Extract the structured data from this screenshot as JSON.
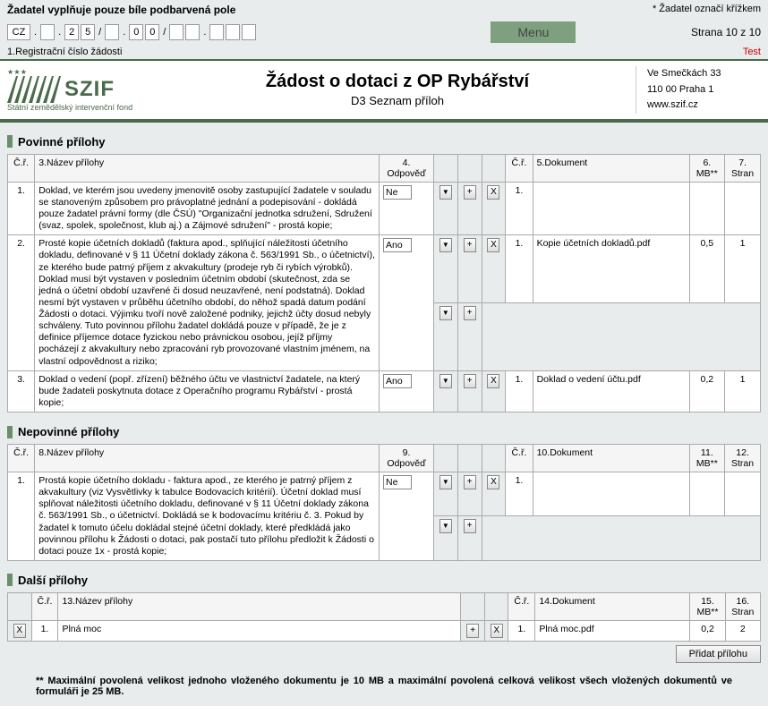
{
  "header": {
    "fill_note": "Žadatel vyplňuje pouze bíle podbarvená pole",
    "mark_note": "* Žadatel označí křížkem",
    "reg_prefix": "CZ",
    "reg_parts": [
      ".",
      "",
      ".",
      "2",
      "5",
      "/",
      "",
      ".",
      "0",
      "0",
      "/",
      "",
      "",
      ".",
      "",
      "",
      ""
    ],
    "menu": "Menu",
    "page_info": "Strana 10 z 10",
    "test": "Test",
    "reg_label": "1.Registrační číslo žádosti"
  },
  "banner": {
    "logo_text": "SZIF",
    "logo_sub": "Státní zemědělský intervenční fond",
    "title": "Žádost o dotaci z OP Rybářství",
    "subtitle": "D3 Seznam příloh",
    "addr1": "Ve Smečkách 33",
    "addr2": "110 00 Praha 1",
    "addr3": "www.szif.cz"
  },
  "sections": {
    "povinne": "Povinné přílohy",
    "nepovinne": "Nepovinné přílohy",
    "dalsi": "Další přílohy"
  },
  "hdr": {
    "cr": "Č.ř.",
    "nazev3": "3.Název přílohy",
    "odp4": "4. Odpověď",
    "dok5": "5.Dokument",
    "mb6": "6. MB**",
    "stran7": "7. Stran",
    "nazev8": "8.Název přílohy",
    "odp9": "9. Odpověď",
    "dok10": "10.Dokument",
    "mb11": "11. MB**",
    "stran12": "12. Stran",
    "nazev13": "13.Název přílohy",
    "dok14": "14.Dokument",
    "mb15": "15. MB**",
    "stran16": "16. Stran"
  },
  "povinne_rows": [
    {
      "n": "1.",
      "desc": "Doklad, ve kterém jsou uvedeny jmenovitě osoby zastupující žadatele v souladu se stanoveným způsobem pro právoplatné jednání a podepisování - dokládá pouze žadatel právní formy (dle ČSÚ) \"Organizační jednotka sdružení, Sdružení (svaz, spolek, společnost, klub aj.) a Zájmové sdružení\" - prostá kopie;",
      "odp": "Ne",
      "doc_n": "1.",
      "doc": "",
      "mb": "",
      "stran": ""
    },
    {
      "n": "2.",
      "desc": "Prosté kopie účetních dokladů (faktura apod., splňující náležitosti účetního dokladu, definované v § 11 Účetní doklady zákona č. 563/1991 Sb., o účetnictví), ze kterého bude patrný příjem z akvakultury (prodeje ryb či rybích výrobků). Doklad musí být vystaven v posledním účetním období (skutečnost, zda se jedná o účetní období uzavřené či dosud neuzavřené, není podstatná). Doklad nesmí být vystaven v průběhu účetního období, do něhož spadá datum podání Žádosti o dotaci. Výjimku tvoří nově založené podniky, jejichž účty dosud nebyly schváleny. Tuto povinnou přílohu žadatel dokládá pouze v případě, že je z definice příjemce dotace fyzickou nebo právnickou osobou, jejíž příjmy pocházejí z akvakultury nebo zpracování ryb provozované vlastním jménem, na vlastní odpovědnost a riziko;",
      "odp": "Ano",
      "doc_n": "1.",
      "doc": "Kopie účetních dokladů.pdf",
      "mb": "0,5",
      "stran": "1"
    },
    {
      "n": "3.",
      "desc": "Doklad o vedení (popř. zřízení) běžného účtu ve vlastnictví žadatele, na který bude žadateli poskytnuta dotace z Operačního programu Rybářství - prostá kopie;",
      "odp": "Ano",
      "doc_n": "1.",
      "doc": "Doklad o vedení účtu.pdf",
      "mb": "0,2",
      "stran": "1"
    }
  ],
  "nepovinne_rows": [
    {
      "n": "1.",
      "desc": "Prostá kopie účetního dokladu - faktura apod., ze kterého je patrný příjem z akvakultury (viz Vysvětlivky k tabulce Bodovacích kritérií). Účetní doklad musí splňovat náležitosti účetního dokladu, definované v § 11 Účetní doklady zákona č. 563/1991 Sb., o účetnictví. Dokládá se k bodovacímu kritériu č. 3. Pokud by žadatel k tomuto účelu dokládal stejné účetní doklady, které předkládá jako povinnou přílohu k Žádosti o dotaci, pak postačí tuto přílohu předložit k Žádosti o dotaci pouze 1x - prostá kopie;",
      "odp": "Ne",
      "doc_n": "1.",
      "doc": "",
      "mb": "",
      "stran": ""
    }
  ],
  "dalsi_rows": [
    {
      "n": "1.",
      "desc": "Plná moc",
      "doc_n": "1.",
      "doc": "Plná moc.pdf",
      "mb": "0,2",
      "stran": "2"
    }
  ],
  "add_btn": "Přidat přílohu",
  "footnote": "** Maximální povolená velikost jednoho vloženého dokumentu je 10 MB a maximální povolená celková velikost všech vložených dokumentů ve formuláři je 25 MB."
}
